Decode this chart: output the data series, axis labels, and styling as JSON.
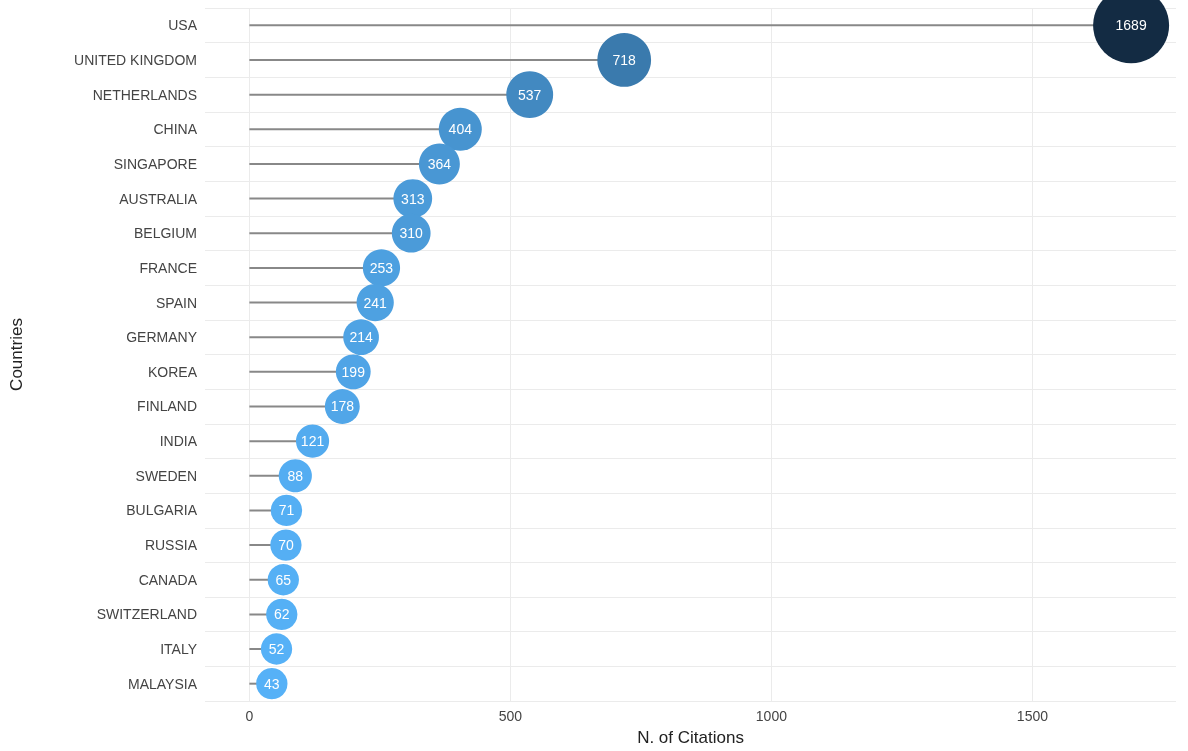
{
  "chart_data": {
    "type": "lollipop",
    "orientation": "horizontal",
    "xlabel": "N. of Citations",
    "ylabel": "Countries",
    "categories": [
      "USA",
      "UNITED KINGDOM",
      "NETHERLANDS",
      "CHINA",
      "SINGAPORE",
      "AUSTRALIA",
      "BELGIUM",
      "FRANCE",
      "SPAIN",
      "GERMANY",
      "KOREA",
      "FINLAND",
      "INDIA",
      "SWEDEN",
      "BULGARIA",
      "RUSSIA",
      "CANADA",
      "SWITZERLAND",
      "ITALY",
      "MALAYSIA"
    ],
    "values": [
      1689,
      718,
      537,
      404,
      364,
      313,
      310,
      253,
      241,
      214,
      199,
      178,
      121,
      88,
      71,
      70,
      65,
      62,
      52,
      43
    ],
    "sizes": [
      1,
      0.5,
      0.38,
      0.32,
      0.29,
      0.26,
      0.26,
      0.24,
      0.24,
      0.22,
      0.21,
      0.21,
      0.19,
      0.19,
      0.17,
      0.17,
      0.17,
      0.17,
      0.17,
      0.17
    ],
    "colors": [
      "#132b43",
      "#3a7aad",
      "#4289c1",
      "#4794d0",
      "#4997d4",
      "#4b9bd9",
      "#4b9bd9",
      "#4da0e0",
      "#4ea1e1",
      "#4fa3e4",
      "#50a4e6",
      "#51a6e8",
      "#53abef",
      "#54adf2",
      "#55aff4",
      "#55aff4",
      "#55b0f5",
      "#55b0f5",
      "#56b1f7",
      "#56b1f7"
    ],
    "xlim": [
      -85,
      1775
    ],
    "xticks": [
      0,
      500,
      1000,
      1500
    ],
    "grid": true,
    "data_labels": true
  }
}
